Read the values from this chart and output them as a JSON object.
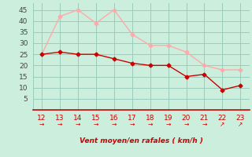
{
  "x": [
    12,
    13,
    14,
    15,
    16,
    17,
    18,
    19,
    20,
    21,
    22,
    23
  ],
  "y_moyen": [
    25,
    26,
    25,
    25,
    23,
    21,
    20,
    20,
    15,
    16,
    9,
    11
  ],
  "y_rafales": [
    25,
    42,
    45,
    39,
    45,
    34,
    29,
    29,
    26,
    20,
    18,
    18
  ],
  "color_moyen": "#cc0000",
  "color_rafales": "#ffaaaa",
  "bg_color": "#cceedd",
  "grid_color": "#99ccbb",
  "xlabel": "Vent moyen/en rafales ( km/h )",
  "xlabel_color": "#cc0000",
  "ytick_labels": [
    "5",
    "10",
    "15",
    "20",
    "25",
    "30",
    "35",
    "40",
    "45"
  ],
  "ytick_vals": [
    5,
    10,
    15,
    20,
    25,
    30,
    35,
    40,
    45
  ],
  "xlim": [
    11.5,
    23.5
  ],
  "ylim": [
    0,
    48
  ],
  "arrows": [
    "→",
    "→",
    "→",
    "→",
    "→",
    "→",
    "→",
    "→",
    "→",
    "→",
    "↗",
    "↗"
  ]
}
